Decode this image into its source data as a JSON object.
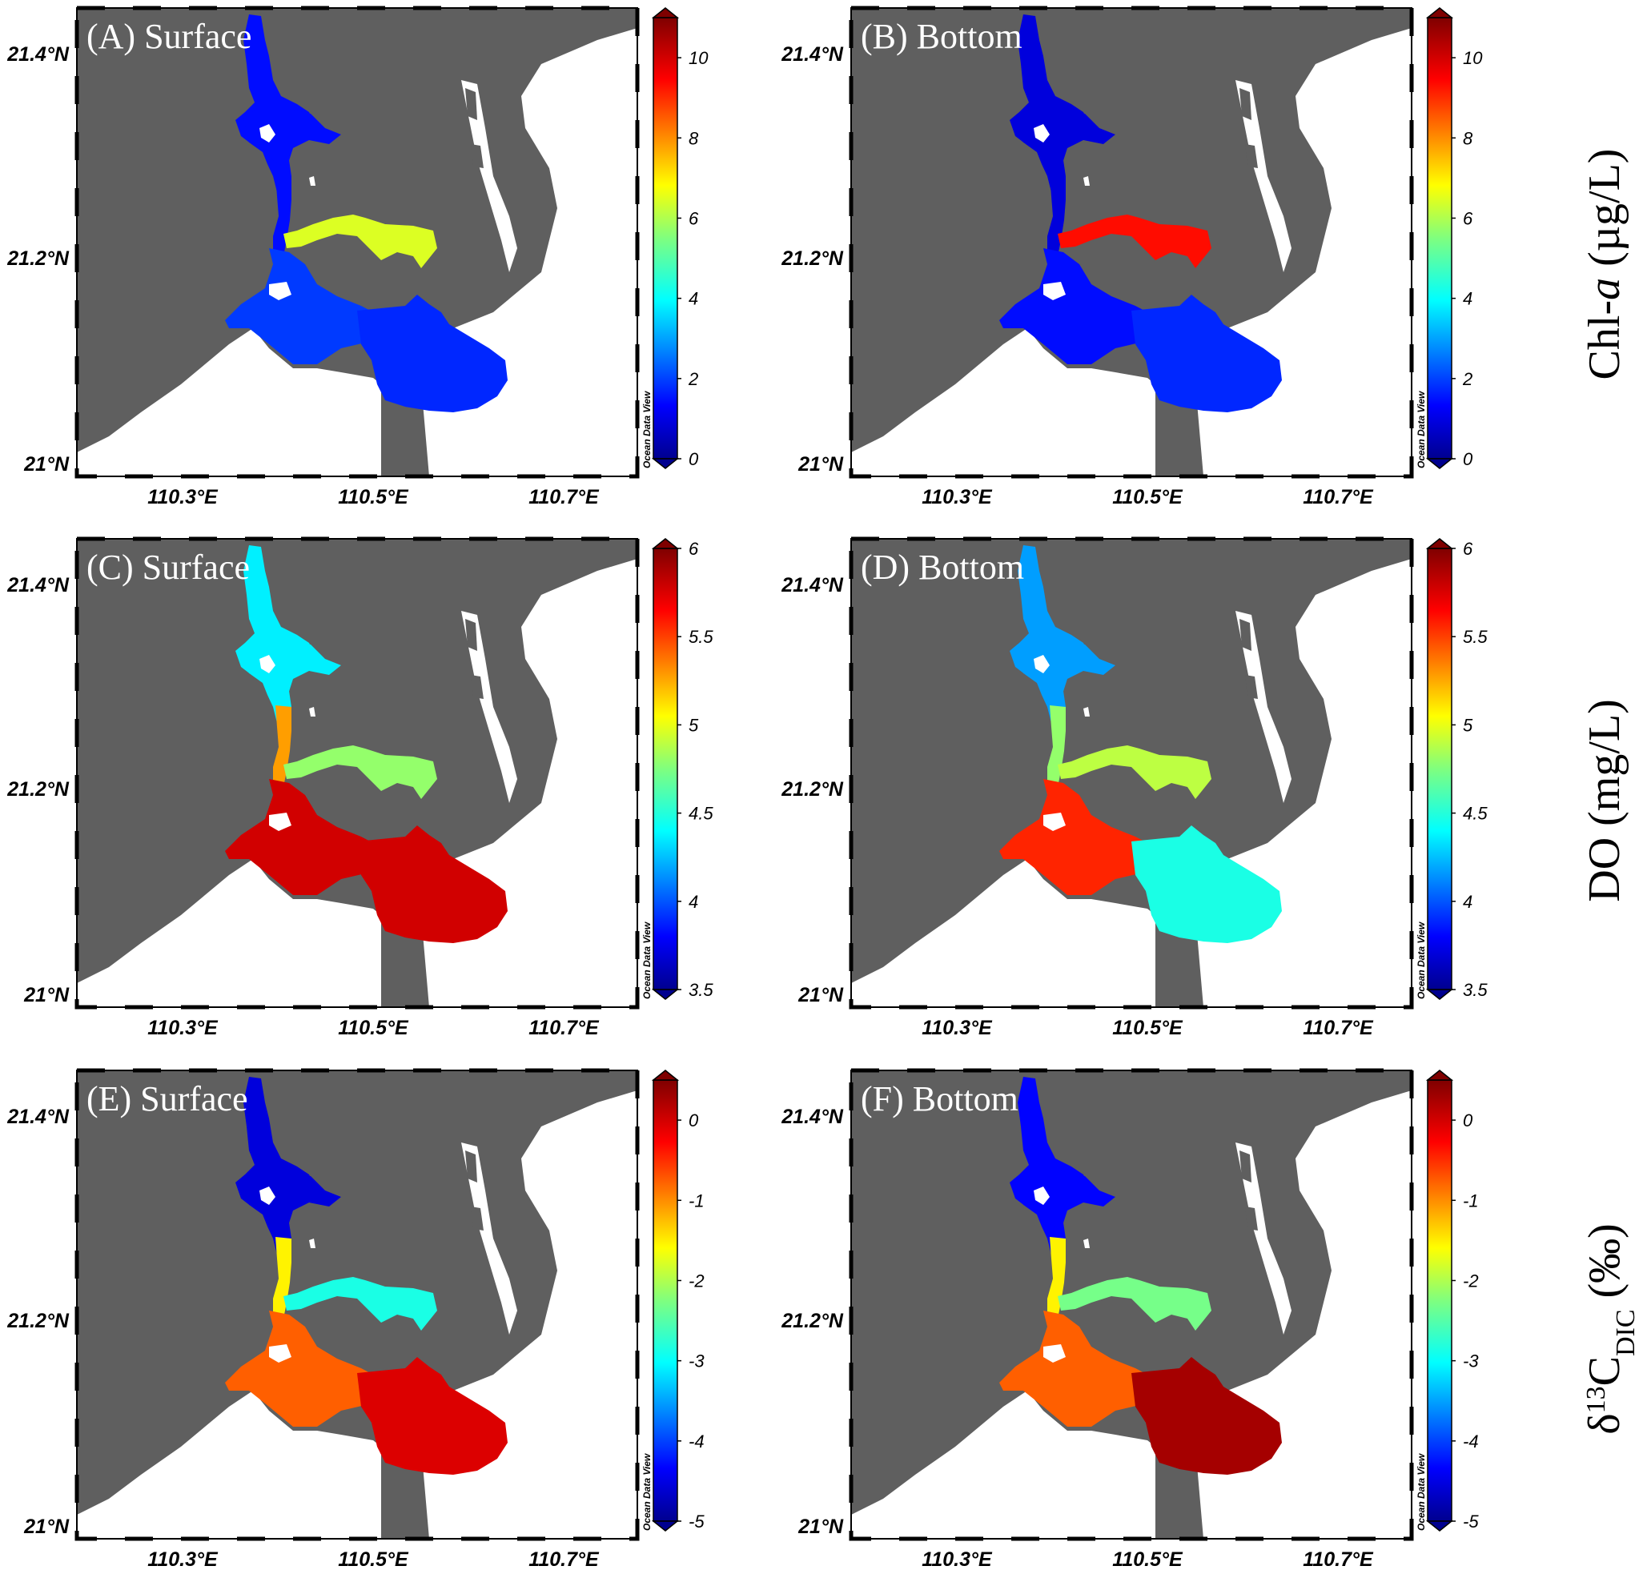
{
  "figure": {
    "lat_ticks": [
      "21.4°N",
      "21.2°N",
      "21°N"
    ],
    "lon_ticks": [
      "110.3°E",
      "110.5°E",
      "110.7°E"
    ],
    "credit": "Ocean Data View",
    "land_color": "#5f5f5f",
    "water_outside_color": "#ffffff"
  },
  "rows": [
    {
      "label": "Chl-a (µg/L)",
      "label_main": "Chl-",
      "label_italic": "a",
      "label_tail": " (µg/L)",
      "colorbar_ticks": [
        "10",
        "8",
        "6",
        "4",
        "2",
        "0"
      ],
      "colorbar_range": [
        0,
        11
      ],
      "panels": [
        {
          "title": "(A) Surface",
          "upper_estuary": 1.5,
          "branch": 6.5,
          "lower_bay": 2.0,
          "mouth": 1.8
        },
        {
          "title": "(B) Bottom",
          "upper_estuary": 1.0,
          "branch": 9.5,
          "lower_bay": 1.5,
          "mouth": 1.8
        }
      ]
    },
    {
      "label": "DO (mg/L)",
      "colorbar_ticks": [
        "6",
        "5.5",
        "5",
        "4.5",
        "4",
        "3.5"
      ],
      "colorbar_range": [
        3.5,
        6
      ],
      "panels": [
        {
          "title": "(C) Surface",
          "upper_estuary": 4.4,
          "middle": 5.3,
          "branch": 4.8,
          "lower_bay": 5.8,
          "mouth": 5.8
        },
        {
          "title": "(D) Bottom",
          "upper_estuary": 4.2,
          "middle": 4.8,
          "branch": 4.9,
          "lower_bay": 5.6,
          "mouth": 4.5
        }
      ]
    },
    {
      "label": "δ13C_DIC (‰)",
      "colorbar_ticks": [
        "0",
        "-1",
        "-2",
        "-3",
        "-4",
        "-5"
      ],
      "colorbar_range": [
        -5,
        0.5
      ],
      "panels": [
        {
          "title": "(E) Surface",
          "upper_estuary": -4.5,
          "middle": -1.5,
          "branch": -2.8,
          "lower_bay": -0.7,
          "mouth": 0.0
        },
        {
          "title": "(F) Bottom",
          "upper_estuary": -4.3,
          "middle": -1.5,
          "branch": -2.3,
          "lower_bay": -0.7,
          "mouth": 0.3
        }
      ]
    }
  ]
}
